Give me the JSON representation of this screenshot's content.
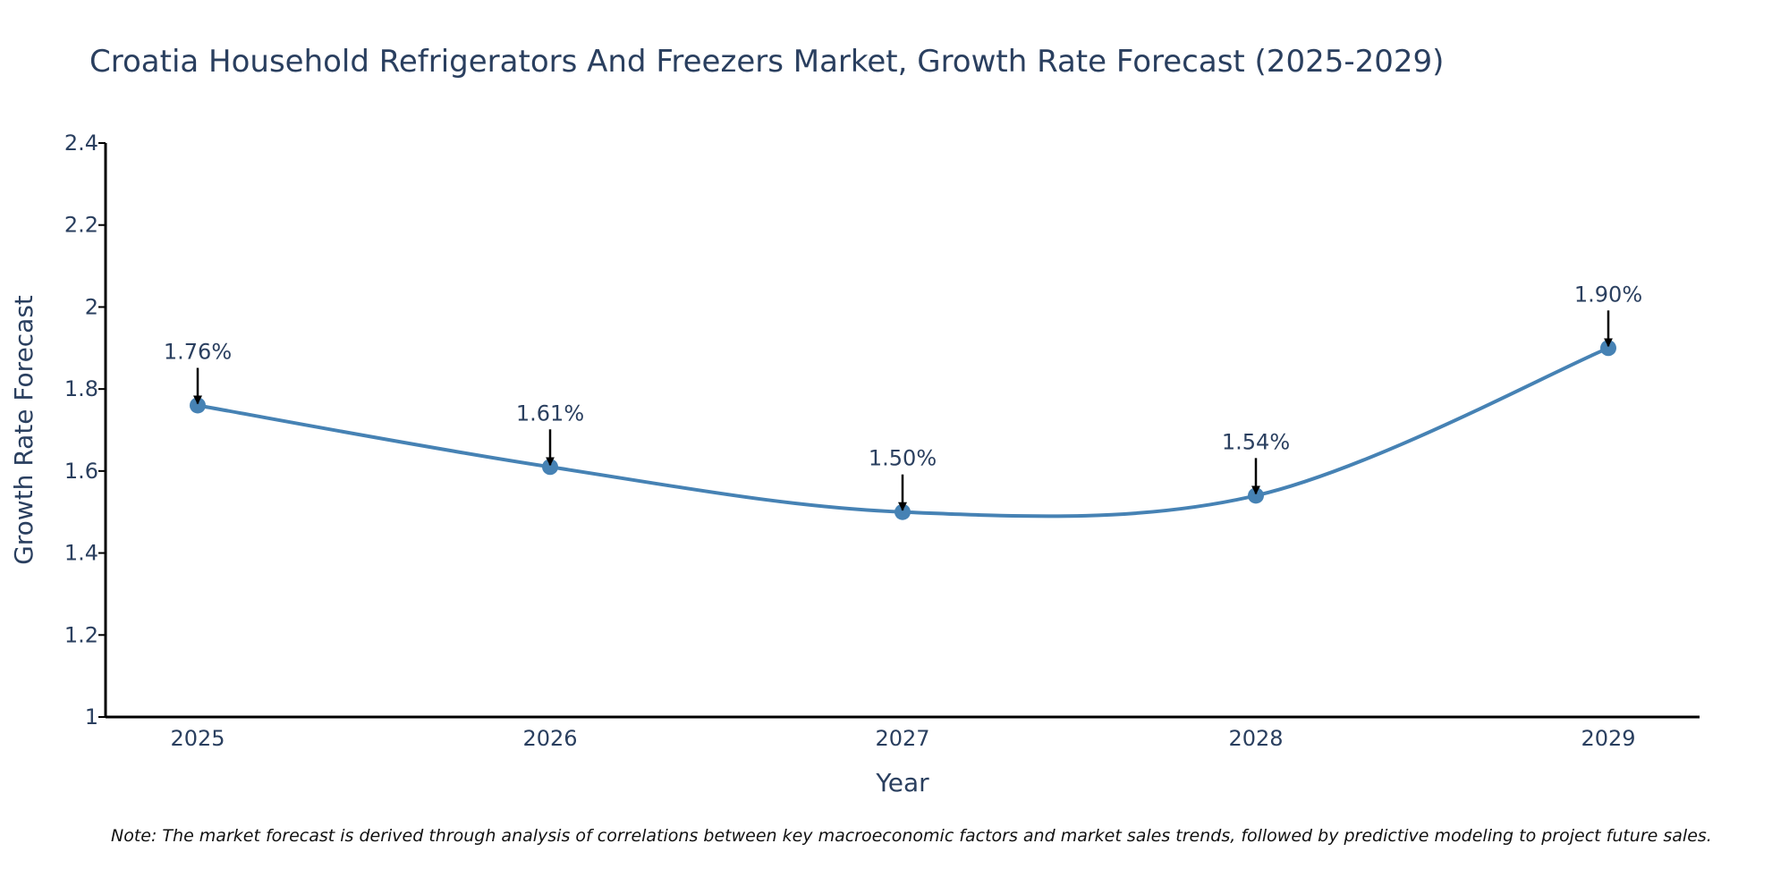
{
  "chart_data": {
    "type": "line",
    "title": "Croatia Household Refrigerators And Freezers Market, Growth Rate Forecast (2025-2029)",
    "xlabel": "Year",
    "ylabel": "Growth Rate Forecast",
    "categories": [
      "2025",
      "2026",
      "2027",
      "2028",
      "2029"
    ],
    "values": [
      1.76,
      1.61,
      1.5,
      1.54,
      1.9
    ],
    "data_labels": [
      "1.76%",
      "1.61%",
      "1.50%",
      "1.54%",
      "1.90%"
    ],
    "ylim": [
      1,
      2.4
    ],
    "yticks": [
      1,
      1.2,
      1.4,
      1.6,
      1.8,
      2,
      2.2,
      2.4
    ],
    "ytick_labels": [
      "1",
      "1.2",
      "1.4",
      "1.6",
      "1.8",
      "2",
      "2.2",
      "2.4"
    ],
    "grid": false,
    "line_shape": "spline",
    "colors": {
      "line": "#4682b4",
      "marker": "#4682b4",
      "axis": "#000000",
      "text": "#2a3f5f",
      "arrow": "#000000"
    }
  },
  "note": "Note: The market forecast is derived through analysis of correlations between key macroeconomic factors and market sales trends, followed by predictive modeling to project future sales."
}
